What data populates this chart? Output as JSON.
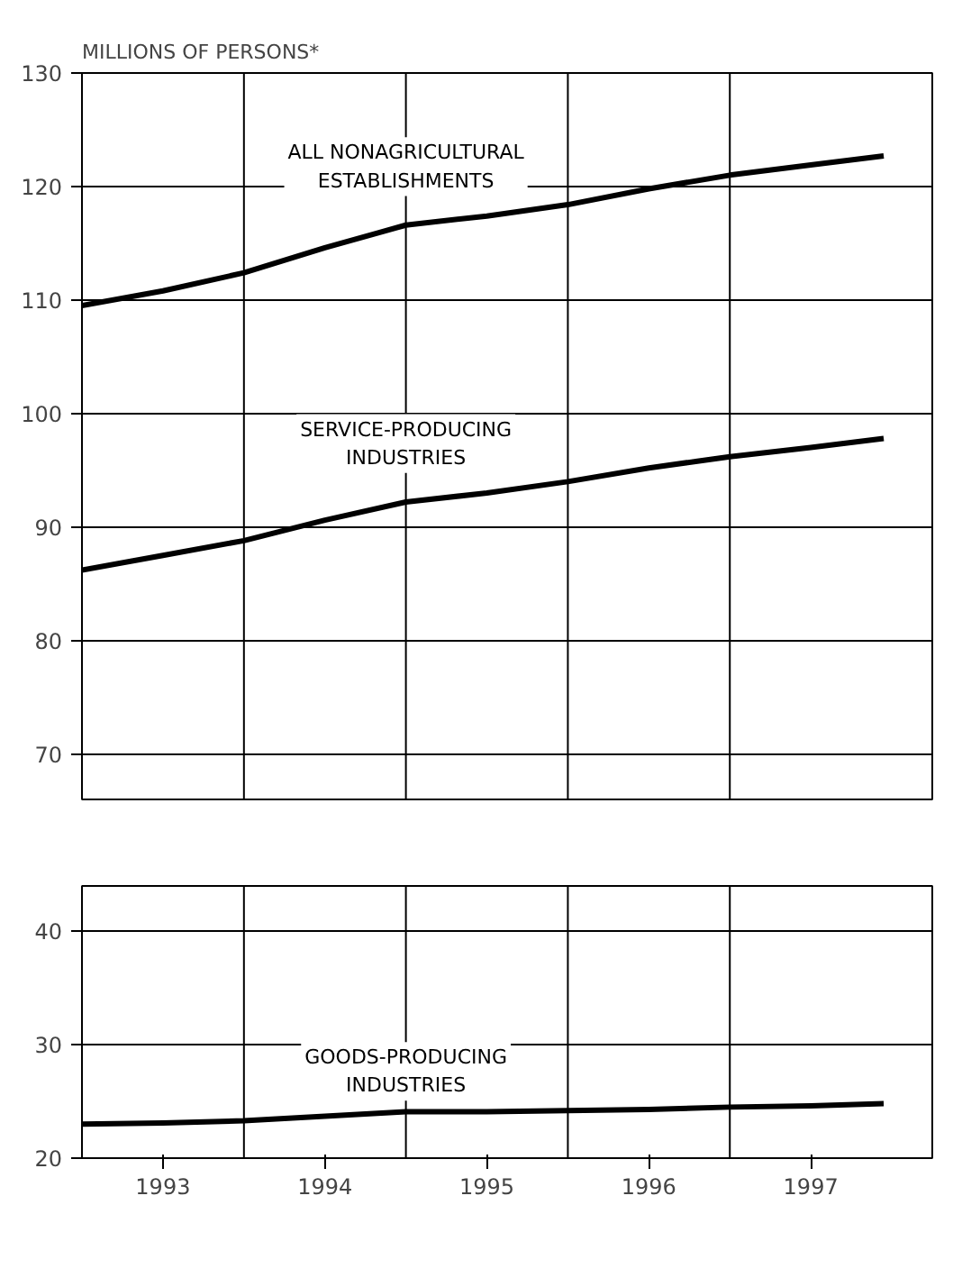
{
  "chart_data": [
    {
      "type": "line",
      "ylabel": "MILLIONS OF PERSONS*",
      "x": [
        1993.0,
        1993.5,
        1994.0,
        1994.5,
        1995.0,
        1995.5,
        1996.0,
        1996.5,
        1997.0,
        1997.5,
        1997.95
      ],
      "series": [
        {
          "name": "ALL NONAGRICULTURAL\nESTABLISHMENTS",
          "color": "#000000",
          "values": [
            109.5,
            110.8,
            112.4,
            114.6,
            116.6,
            117.4,
            118.4,
            119.8,
            121.0,
            121.9,
            122.7
          ]
        },
        {
          "name": "SERVICE-PRODUCING\nINDUSTRIES",
          "color": "#000000",
          "values": [
            86.2,
            87.5,
            88.8,
            90.6,
            92.2,
            93.0,
            94.0,
            95.2,
            96.2,
            97.0,
            97.8
          ]
        }
      ],
      "xlim": [
        1993.0,
        1998.25
      ],
      "ylim": [
        66,
        130
      ],
      "yticks": [
        70,
        80,
        90,
        100,
        110,
        120,
        130
      ],
      "tick_labels": "y",
      "grid": "y",
      "line_style": "solid",
      "ref_lines": [
        {
          "axis": "x",
          "value": 1994
        },
        {
          "axis": "x",
          "value": 1995
        },
        {
          "axis": "x",
          "value": 1996
        },
        {
          "axis": "x",
          "value": 1997
        }
      ]
    },
    {
      "type": "line",
      "x": [
        1993.0,
        1993.5,
        1994.0,
        1994.5,
        1995.0,
        1995.5,
        1996.0,
        1996.5,
        1997.0,
        1997.5,
        1997.95
      ],
      "series": [
        {
          "name": "GOODS-PRODUCING\nINDUSTRIES",
          "color": "#000000",
          "values": [
            23.0,
            23.1,
            23.3,
            23.7,
            24.1,
            24.1,
            24.2,
            24.3,
            24.5,
            24.6,
            24.8
          ]
        }
      ],
      "xlim": [
        1993.0,
        1998.25
      ],
      "ylim": [
        20,
        44
      ],
      "yticks": [
        20,
        30,
        40
      ],
      "xticks": [
        {
          "value": 1993.5,
          "label": "1993"
        },
        {
          "value": 1994.5,
          "label": "1994"
        },
        {
          "value": 1995.5,
          "label": "1995"
        },
        {
          "value": 1996.5,
          "label": "1996"
        },
        {
          "value": 1997.5,
          "label": "1997"
        }
      ],
      "grid": "y",
      "line_style": "solid",
      "ref_lines": [
        {
          "axis": "x",
          "value": 1994
        },
        {
          "axis": "x",
          "value": 1995
        },
        {
          "axis": "x",
          "value": 1996
        },
        {
          "axis": "x",
          "value": 1997
        }
      ]
    }
  ]
}
